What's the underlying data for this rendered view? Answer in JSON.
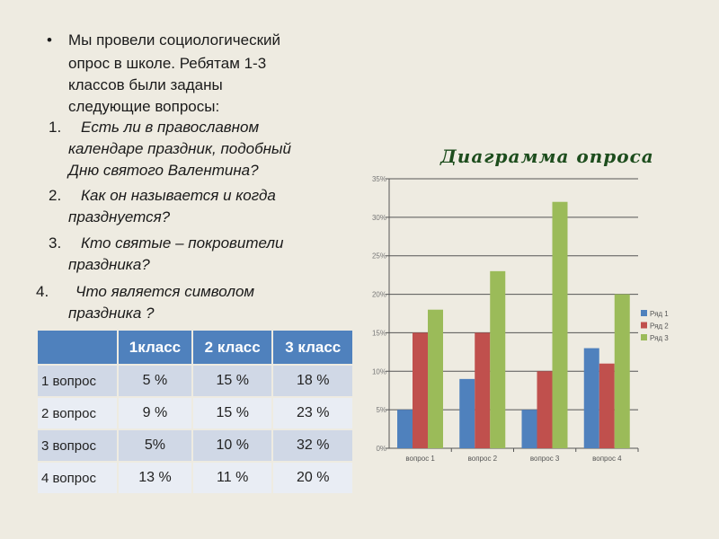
{
  "intro": {
    "bullet": "•",
    "lines": [
      "Мы провели социологический",
      "опрос в школе. Ребятам 1-3",
      "классов  были заданы",
      "следующие  вопросы:"
    ]
  },
  "questions": [
    {
      "num": "1.",
      "lines": [
        "Есть ли в православном",
        "календаре праздник, подобный",
        "Дню святого Валентина?"
      ]
    },
    {
      "num": "2.",
      "lines": [
        "Как он называется и когда",
        "празднуется?"
      ]
    },
    {
      "num": "3.",
      "lines": [
        "Кто святые – покровители",
        "праздника?"
      ]
    },
    {
      "num": "4.",
      "lines": [
        "Что является символом",
        "праздника ?"
      ]
    }
  ],
  "table": {
    "headers": [
      "",
      "1класс",
      "2 класс",
      "3 класс"
    ],
    "rows": [
      [
        "1 вопрос",
        "5 %",
        "15 %",
        "18 %"
      ],
      [
        "2 вопрос",
        "9 %",
        "15 %",
        "23 %"
      ],
      [
        "3 вопрос",
        "5%",
        "10 %",
        "32 %"
      ],
      [
        "4 вопрос",
        "13 %",
        "11 %",
        "20 %"
      ]
    ]
  },
  "chart_data": {
    "type": "bar",
    "title": "Диаграмма опроса",
    "categories": [
      "вопрос 1",
      "вопрос 2",
      "вопрос 3",
      "вопрос 4"
    ],
    "series": [
      {
        "name": "Ряд 1",
        "values": [
          5,
          9,
          5,
          13
        ],
        "color": "#4f81bd"
      },
      {
        "name": "Ряд 2",
        "values": [
          15,
          15,
          10,
          11
        ],
        "color": "#c0504d"
      },
      {
        "name": "Ряд 3",
        "values": [
          18,
          23,
          32,
          20
        ],
        "color": "#9bbb59"
      }
    ],
    "yticks": [
      "0%",
      "5%",
      "10%",
      "15%",
      "20%",
      "25%",
      "30%",
      "35%"
    ],
    "ylim": [
      0,
      35
    ],
    "grid": true,
    "legend": "right"
  }
}
